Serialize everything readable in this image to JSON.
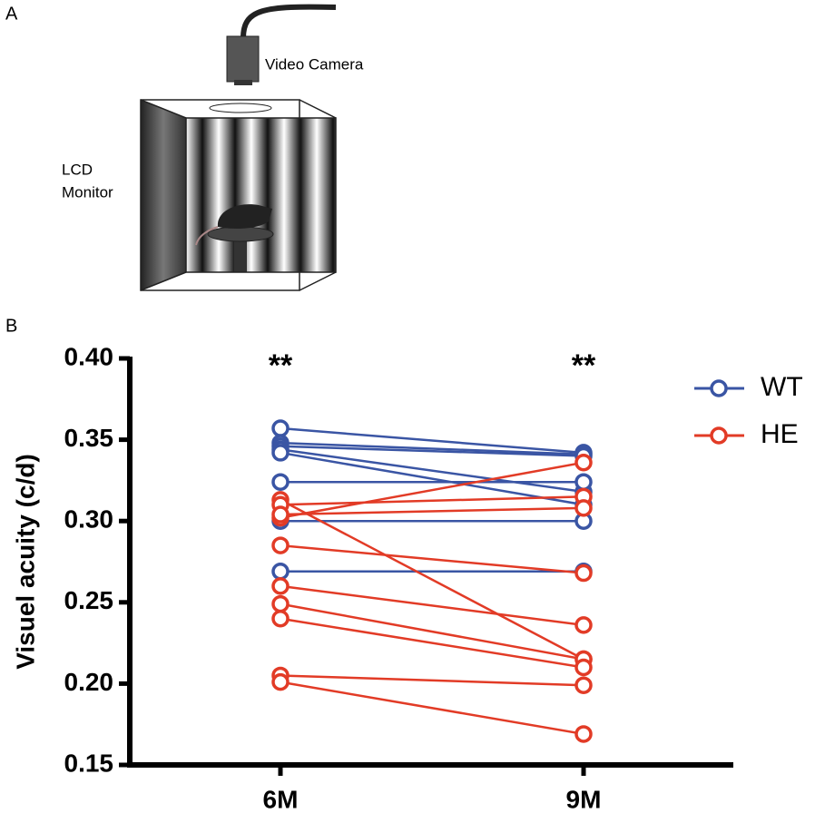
{
  "panel_a": {
    "label": "A",
    "camera_label": "Video Camera",
    "monitor_label": [
      "LCD",
      "Monitor"
    ]
  },
  "chart_data": {
    "type": "line",
    "panel_label": "B",
    "y_label": "Visuel  acuity (c/d)",
    "categories": [
      "6M",
      "9M"
    ],
    "annotations": [
      "**",
      "**"
    ],
    "ylim": [
      0.15,
      0.4
    ],
    "yticks": [
      0.15,
      {
        "value": 0.2,
        "label": "0.20"
      },
      0.25,
      {
        "value": 0.3,
        "label": "0.30"
      },
      0.35,
      {
        "value": 0.4,
        "label": "0.40"
      }
    ],
    "legend": "top-right",
    "series": [
      {
        "name": "WT",
        "color": "#3a55a4",
        "values": [
          [
            0.357,
            0.342
          ],
          [
            0.348,
            0.341
          ],
          [
            0.346,
            0.34
          ],
          [
            0.344,
            0.318
          ],
          [
            0.342,
            0.31
          ],
          [
            0.324,
            0.324
          ],
          [
            0.3,
            0.3
          ],
          [
            0.269,
            0.269
          ]
        ]
      },
      {
        "name": "HE",
        "color": "#e23b26",
        "values": [
          [
            0.302,
            0.336
          ],
          [
            0.313,
            0.215
          ],
          [
            0.31,
            0.315
          ],
          [
            0.304,
            0.308
          ],
          [
            0.285,
            0.268
          ],
          [
            0.26,
            0.236
          ],
          [
            0.249,
            0.215
          ],
          [
            0.24,
            0.21
          ],
          [
            0.205,
            0.199
          ],
          [
            0.201,
            0.169
          ]
        ]
      }
    ]
  }
}
